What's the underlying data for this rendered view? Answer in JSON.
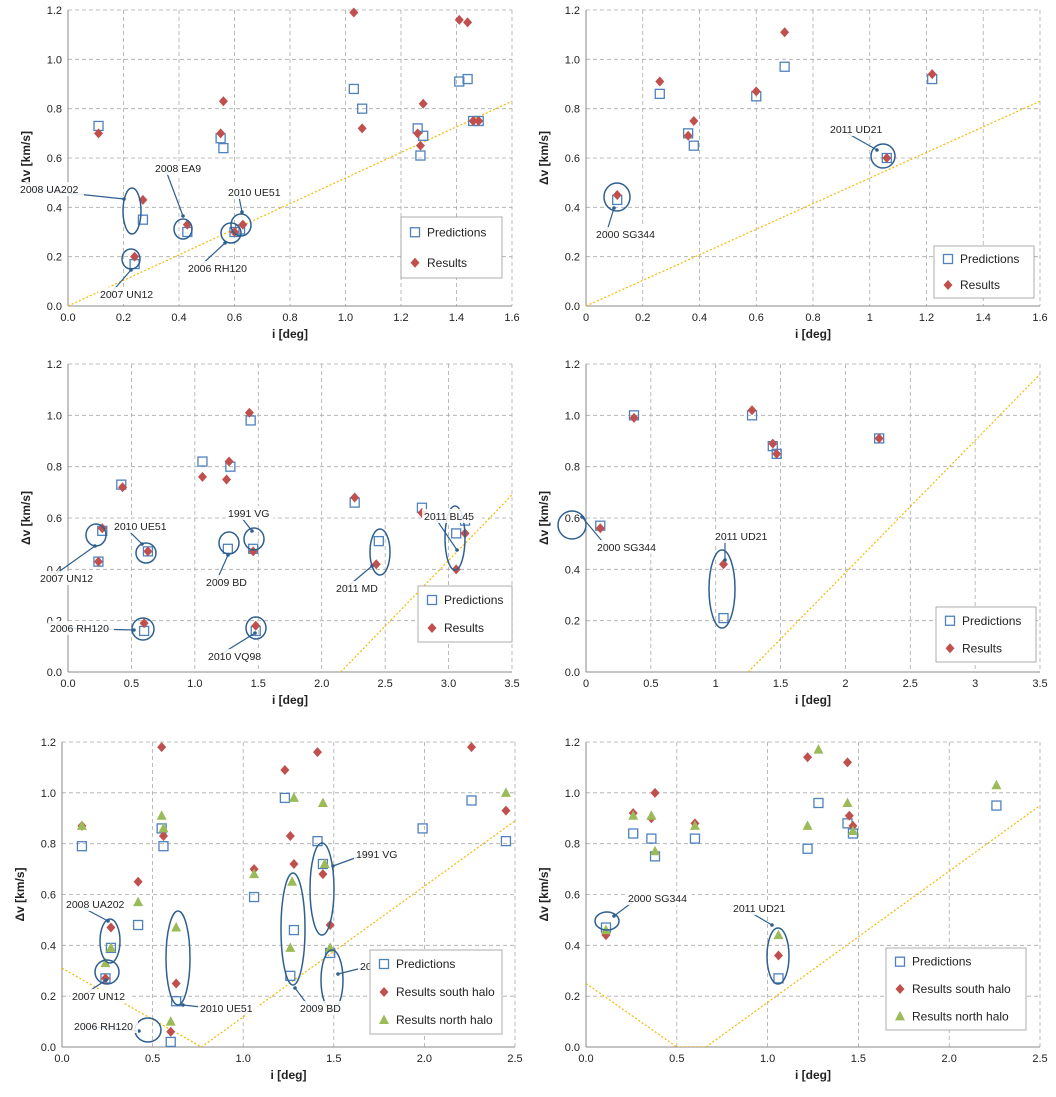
{
  "colors": {
    "predictions": "#4f81bd",
    "results": "#c0504d",
    "north_halo": "#9bbb59",
    "guide_line": "#f5b800",
    "annotation": "#2f5f8f",
    "grid": "#aaaaaa"
  },
  "chart_data": [
    {
      "type": "scatter",
      "xlabel": "i [deg]",
      "ylabel": "Δv [km/s]",
      "xlim": [
        0,
        1.6
      ],
      "ylim": [
        0,
        1.2
      ],
      "xticks": [
        "0.0",
        "0.2",
        "0.4",
        "0.6",
        "0.8",
        "1.0",
        "1.2",
        "1.4",
        "1.6"
      ],
      "yticks": [
        "0.0",
        "0.2",
        "0.4",
        "0.6",
        "0.8",
        "1.0",
        "1.2"
      ],
      "grid": true,
      "legend_position": "bottom-right",
      "guide_line": [
        [
          0,
          0
        ],
        [
          1.6,
          0.83
        ]
      ],
      "series": [
        {
          "name": "Predictions",
          "marker": "square",
          "x": [
            0.11,
            0.24,
            0.27,
            0.43,
            0.55,
            0.56,
            0.6,
            0.62,
            1.03,
            1.06,
            1.26,
            1.27,
            1.28,
            1.41,
            1.44,
            1.46,
            1.48
          ],
          "y": [
            0.73,
            0.17,
            0.35,
            0.3,
            0.68,
            0.64,
            0.3,
            0.31,
            0.88,
            0.8,
            0.72,
            0.61,
            0.69,
            0.91,
            0.92,
            0.75,
            0.75
          ]
        },
        {
          "name": "Results",
          "marker": "diamond",
          "x": [
            0.11,
            0.24,
            0.27,
            0.43,
            0.55,
            0.56,
            0.6,
            0.63,
            1.03,
            1.06,
            1.26,
            1.27,
            1.28,
            1.41,
            1.44,
            1.46,
            1.48
          ],
          "y": [
            0.7,
            0.2,
            0.43,
            0.33,
            0.7,
            0.83,
            0.3,
            0.33,
            1.19,
            0.72,
            0.7,
            0.65,
            0.82,
            1.16,
            1.15,
            0.75,
            0.75
          ]
        }
      ],
      "annotations": [
        {
          "text": "2008 UA202",
          "x": 0.26,
          "y": 0.39
        },
        {
          "text": "2008 EA9",
          "x": 0.43,
          "y": 0.31
        },
        {
          "text": "2010 UE51",
          "x": 0.63,
          "y": 0.32
        },
        {
          "text": "2006 RH120",
          "x": 0.6,
          "y": 0.29
        },
        {
          "text": "2007 UN12",
          "x": 0.24,
          "y": 0.18
        }
      ]
    },
    {
      "type": "scatter",
      "xlabel": "i [deg]",
      "ylabel": "Δv [km/s]",
      "xlim": [
        0,
        1.6
      ],
      "ylim": [
        0,
        1.2
      ],
      "xticks": [
        "0",
        "0.2",
        "0.4",
        "0.6",
        "0.8",
        "1",
        "1.2",
        "1.4",
        "1.6"
      ],
      "yticks": [
        "0.0",
        "0.2",
        "0.4",
        "0.6",
        "0.8",
        "1.0",
        "1.2"
      ],
      "grid": true,
      "legend_position": "bottom-right",
      "guide_line": [
        [
          0,
          0
        ],
        [
          1.6,
          0.83
        ]
      ],
      "series": [
        {
          "name": "Predictions",
          "marker": "square",
          "x": [
            0.11,
            0.26,
            0.36,
            0.38,
            0.6,
            0.7,
            1.06,
            1.22
          ],
          "y": [
            0.43,
            0.86,
            0.7,
            0.65,
            0.85,
            0.97,
            0.6,
            0.92
          ]
        },
        {
          "name": "Results",
          "marker": "diamond",
          "x": [
            0.11,
            0.26,
            0.36,
            0.38,
            0.6,
            0.7,
            1.06,
            1.22
          ],
          "y": [
            0.45,
            0.91,
            0.69,
            0.75,
            0.87,
            1.11,
            0.6,
            0.94
          ]
        }
      ],
      "annotations": [
        {
          "text": "2011 UD21",
          "x": 1.06,
          "y": 0.6
        },
        {
          "text": "2000 SG344",
          "x": 0.11,
          "y": 0.44
        }
      ]
    },
    {
      "type": "scatter",
      "xlabel": "i [deg]",
      "ylabel": "Δv [km/s]",
      "xlim": [
        0,
        3.5
      ],
      "ylim": [
        0,
        1.2
      ],
      "xticks": [
        "0.0",
        "0.5",
        "1.0",
        "1.5",
        "2.0",
        "2.5",
        "3.0",
        "3.5"
      ],
      "yticks": [
        "0.0",
        "0.2",
        "0.4",
        "0.6",
        "0.8",
        "1.0",
        "1.2"
      ],
      "grid": true,
      "legend_position": "bottom-right",
      "guide_line": [
        [
          2.15,
          0
        ],
        [
          3.5,
          0.69
        ]
      ],
      "series": [
        {
          "name": "Predictions",
          "marker": "square",
          "x": [
            0.24,
            0.27,
            0.42,
            0.6,
            0.63,
            1.06,
            1.26,
            1.28,
            1.44,
            1.46,
            1.48,
            2.26,
            2.45,
            2.79,
            3.06,
            3.13
          ],
          "y": [
            0.43,
            0.55,
            0.73,
            0.16,
            0.47,
            0.82,
            0.48,
            0.8,
            0.98,
            0.48,
            0.16,
            0.66,
            0.51,
            0.64,
            0.54,
            0.59
          ]
        },
        {
          "name": "Results",
          "marker": "diamond",
          "x": [
            0.24,
            0.27,
            0.43,
            0.6,
            0.63,
            1.06,
            1.25,
            1.27,
            1.43,
            1.46,
            1.48,
            2.26,
            2.43,
            2.79,
            3.06,
            3.13
          ],
          "y": [
            0.43,
            0.56,
            0.72,
            0.19,
            0.47,
            0.76,
            0.75,
            0.82,
            1.01,
            0.47,
            0.18,
            0.68,
            0.42,
            0.62,
            0.4,
            0.54
          ]
        }
      ],
      "annotations": [
        {
          "text": "2010 UE51",
          "x": 0.63,
          "y": 0.47
        },
        {
          "text": "1991 VG",
          "x": 1.46,
          "y": 0.48
        },
        {
          "text": "2011 BL45",
          "x": 3.06,
          "y": 0.51
        },
        {
          "text": "2007 UN12",
          "x": 0.25,
          "y": 0.43
        },
        {
          "text": "2009 BD",
          "x": 1.27,
          "y": 0.48
        },
        {
          "text": "2011 MD",
          "x": 2.43,
          "y": 0.46
        },
        {
          "text": "2006 RH120",
          "x": 0.6,
          "y": 0.17
        },
        {
          "text": "2010 VQ98",
          "x": 1.47,
          "y": 0.17
        }
      ]
    },
    {
      "type": "scatter",
      "xlabel": "i [deg]",
      "ylabel": "Δv [km/s]",
      "xlim": [
        0,
        3.5
      ],
      "ylim": [
        0,
        1.2
      ],
      "xticks": [
        "0",
        "0.5",
        "1",
        "1.5",
        "2",
        "2.5",
        "3",
        "3.5"
      ],
      "yticks": [
        "0.0",
        "0.2",
        "0.4",
        "0.6",
        "0.8",
        "1.0",
        "1.2"
      ],
      "grid": true,
      "legend_position": "bottom-right",
      "guide_line": [
        [
          1.25,
          0
        ],
        [
          3.5,
          1.16
        ]
      ],
      "series": [
        {
          "name": "Predictions",
          "marker": "square",
          "x": [
            0.11,
            0.37,
            1.06,
            1.28,
            1.44,
            1.47,
            2.26
          ],
          "y": [
            0.57,
            1.0,
            0.21,
            1.0,
            0.88,
            0.85,
            0.91
          ]
        },
        {
          "name": "Results",
          "marker": "diamond",
          "x": [
            0.11,
            0.37,
            1.06,
            1.28,
            1.44,
            1.47,
            2.26
          ],
          "y": [
            0.56,
            0.99,
            0.42,
            1.02,
            0.89,
            0.85,
            0.91
          ]
        }
      ],
      "annotations": [
        {
          "text": "2000 SG344",
          "x": 0.11,
          "y": 0.57
        },
        {
          "text": "2011 UD21",
          "x": 1.06,
          "y": 0.32
        }
      ]
    },
    {
      "type": "scatter",
      "xlabel": "i [deg]",
      "ylabel": "Δv [km/s]",
      "xlim": [
        0,
        2.5
      ],
      "ylim": [
        0,
        1.2
      ],
      "xticks": [
        "0.0",
        "0.5",
        "1.0",
        "1.5",
        "2.0",
        "2.5"
      ],
      "yticks": [
        "0.0",
        "0.2",
        "0.4",
        "0.6",
        "0.8",
        "1.0",
        "1.2"
      ],
      "grid": true,
      "legend_position": "bottom-right",
      "guide_line": [
        [
          0,
          0.31
        ],
        [
          0.77,
          0
        ],
        [
          2.5,
          0.89
        ]
      ],
      "series": [
        {
          "name": "Predictions",
          "marker": "square",
          "x": [
            0.11,
            0.24,
            0.27,
            0.42,
            0.55,
            0.56,
            0.6,
            0.63,
            1.06,
            1.23,
            1.26,
            1.28,
            1.41,
            1.44,
            1.48,
            1.99,
            2.26,
            2.45
          ],
          "y": [
            0.79,
            0.27,
            0.39,
            0.48,
            0.86,
            0.79,
            0.02,
            0.18,
            0.59,
            0.98,
            0.28,
            0.46,
            0.81,
            0.72,
            0.37,
            0.86,
            0.97,
            0.81
          ]
        },
        {
          "name": "Results south halo",
          "marker": "diamond",
          "x": [
            0.11,
            0.24,
            0.27,
            0.42,
            0.55,
            0.56,
            0.6,
            0.63,
            1.06,
            1.23,
            1.26,
            1.28,
            1.41,
            1.44,
            1.48,
            2.26,
            2.45
          ],
          "y": [
            0.87,
            0.27,
            0.47,
            0.65,
            1.18,
            0.83,
            0.06,
            0.25,
            0.7,
            1.09,
            0.83,
            0.72,
            1.16,
            0.68,
            0.48,
            1.18,
            0.93
          ]
        },
        {
          "name": "Results north halo",
          "marker": "triangle",
          "x": [
            0.11,
            0.24,
            0.27,
            0.42,
            0.55,
            0.56,
            0.6,
            0.63,
            1.06,
            1.26,
            1.27,
            1.28,
            1.44,
            1.45,
            1.48,
            2.45
          ],
          "y": [
            0.87,
            0.33,
            0.39,
            0.57,
            0.91,
            0.86,
            0.1,
            0.47,
            0.68,
            0.39,
            0.65,
            0.98,
            0.96,
            0.72,
            0.39,
            1.0
          ]
        }
      ],
      "annotations": [
        {
          "text": "1991 VG",
          "x": 1.45,
          "y": 0.57
        },
        {
          "text": "2008 UA202",
          "x": 0.26,
          "y": 0.41
        },
        {
          "text": "2010 VQ98",
          "x": 1.48,
          "y": 0.4
        },
        {
          "text": "2007 UN12",
          "x": 0.25,
          "y": 0.29
        },
        {
          "text": "2010 UE51",
          "x": 0.63,
          "y": 0.3
        },
        {
          "text": "2009 BD",
          "x": 1.27,
          "y": 0.46
        },
        {
          "text": "2006 RH120",
          "x": 0.6,
          "y": 0.05
        }
      ]
    },
    {
      "type": "scatter",
      "xlabel": "i [deg]",
      "ylabel": "Δv [km/s]",
      "xlim": [
        0,
        2.5
      ],
      "ylim": [
        0,
        1.2
      ],
      "xticks": [
        "0.0",
        "0.5",
        "1.0",
        "1.5",
        "2.0",
        "2.5"
      ],
      "yticks": [
        "0.0",
        "0.2",
        "0.4",
        "0.6",
        "0.8",
        "1.0",
        "1.2"
      ],
      "grid": true,
      "legend_position": "bottom-right",
      "guide_line": [
        [
          0,
          0.25
        ],
        [
          0.5,
          0
        ],
        [
          0.66,
          0
        ],
        [
          2.5,
          0.95
        ]
      ],
      "series": [
        {
          "name": "Predictions",
          "marker": "square",
          "x": [
            0.11,
            0.26,
            0.36,
            0.38,
            0.6,
            1.06,
            1.22,
            1.28,
            1.44,
            1.47,
            2.26
          ],
          "y": [
            0.47,
            0.84,
            0.82,
            0.75,
            0.82,
            0.27,
            0.78,
            0.96,
            0.88,
            0.84,
            0.95
          ]
        },
        {
          "name": "Results south halo",
          "marker": "diamond",
          "x": [
            0.11,
            0.26,
            0.36,
            0.38,
            0.6,
            1.06,
            1.22,
            1.44,
            1.45,
            1.47
          ],
          "y": [
            0.44,
            0.92,
            0.9,
            1.0,
            0.88,
            0.36,
            1.14,
            1.12,
            0.91,
            0.87
          ]
        },
        {
          "name": "Results north halo",
          "marker": "triangle",
          "x": [
            0.11,
            0.26,
            0.36,
            0.38,
            0.6,
            1.06,
            1.22,
            1.28,
            1.44,
            1.47,
            2.26
          ],
          "y": [
            0.46,
            0.91,
            0.91,
            0.77,
            0.87,
            0.44,
            0.87,
            1.17,
            0.96,
            0.85,
            1.03
          ]
        }
      ],
      "annotations": [
        {
          "text": "2000 SG344",
          "x": 0.11,
          "y": 0.46
        },
        {
          "text": "2011 UD21",
          "x": 1.06,
          "y": 0.36
        }
      ]
    }
  ]
}
